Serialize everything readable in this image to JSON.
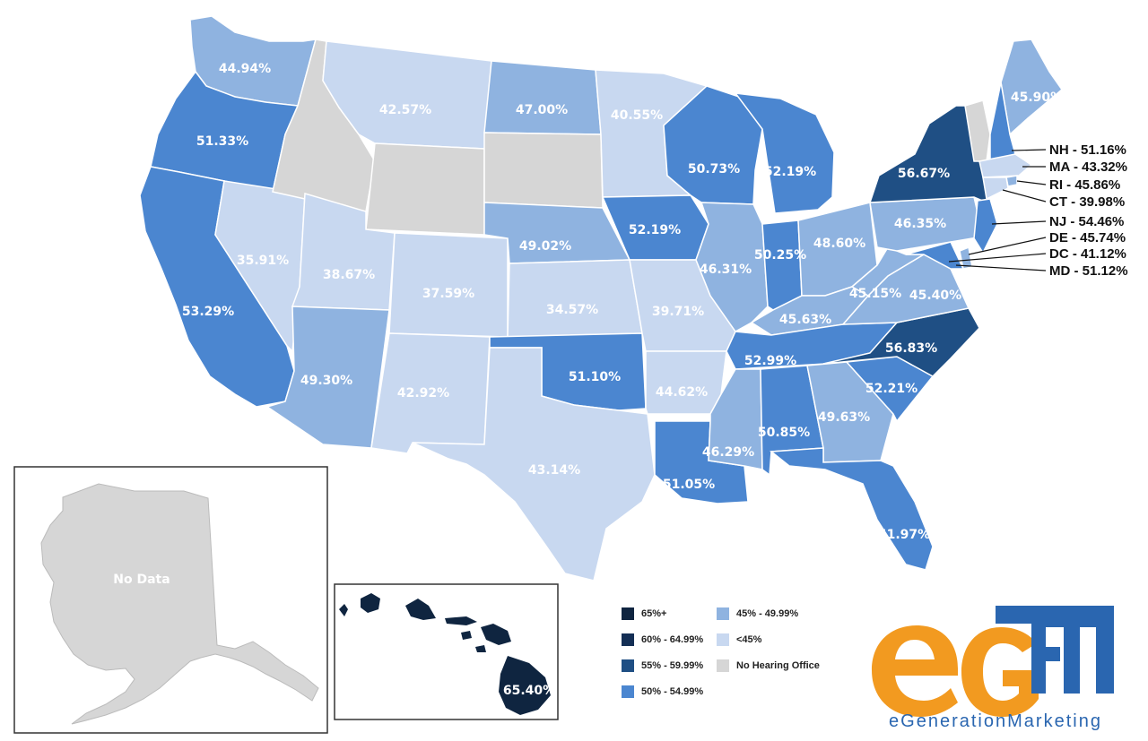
{
  "colors": {
    "c65": "#0f2540",
    "c60": "#142f55",
    "c55": "#1f4f84",
    "c50": "#4b86d0",
    "c45": "#8fb3e0",
    "c40": "#c8d8f0",
    "nohearing": "#d6d6d6",
    "stroke": "#ffffff",
    "logoOrange": "#f29a20",
    "logoBlue": "#2a66b0",
    "labelText": "#ffffff"
  },
  "map": {
    "states": [
      {
        "id": "WA",
        "value": "44.94%",
        "tier": "c45"
      },
      {
        "id": "OR",
        "value": "51.33%",
        "tier": "c50"
      },
      {
        "id": "CA",
        "value": "53.29%",
        "tier": "c50"
      },
      {
        "id": "NV",
        "value": "35.91%",
        "tier": "c40"
      },
      {
        "id": "ID",
        "value": "",
        "tier": "nohearing"
      },
      {
        "id": "MT",
        "value": "42.57%",
        "tier": "c40"
      },
      {
        "id": "WY",
        "value": "",
        "tier": "nohearing"
      },
      {
        "id": "UT",
        "value": "38.67%",
        "tier": "c40"
      },
      {
        "id": "AZ",
        "value": "49.30%",
        "tier": "c45"
      },
      {
        "id": "CO",
        "value": "37.59%",
        "tier": "c40"
      },
      {
        "id": "NM",
        "value": "42.92%",
        "tier": "c40"
      },
      {
        "id": "ND",
        "value": "47.00%",
        "tier": "c45"
      },
      {
        "id": "SD",
        "value": "",
        "tier": "nohearing"
      },
      {
        "id": "NE",
        "value": "49.02%",
        "tier": "c45"
      },
      {
        "id": "KS",
        "value": "34.57%",
        "tier": "c40"
      },
      {
        "id": "OK",
        "value": "51.10%",
        "tier": "c50"
      },
      {
        "id": "TX",
        "value": "43.14%",
        "tier": "c40"
      },
      {
        "id": "MN",
        "value": "40.55%",
        "tier": "c40"
      },
      {
        "id": "IA",
        "value": "52.19%",
        "tier": "c50"
      },
      {
        "id": "MO",
        "value": "39.71%",
        "tier": "c40"
      },
      {
        "id": "AR",
        "value": "44.62%",
        "tier": "c40"
      },
      {
        "id": "LA",
        "value": "51.05%",
        "tier": "c50"
      },
      {
        "id": "WI",
        "value": "50.73%",
        "tier": "c50"
      },
      {
        "id": "MI",
        "value": "52.19%",
        "tier": "c50"
      },
      {
        "id": "IL",
        "value": "46.31%",
        "tier": "c45"
      },
      {
        "id": "IN",
        "value": "50.25%",
        "tier": "c50"
      },
      {
        "id": "OH",
        "value": "48.60%",
        "tier": "c45"
      },
      {
        "id": "KY",
        "value": "45.63%",
        "tier": "c45"
      },
      {
        "id": "TN",
        "value": "52.99%",
        "tier": "c50"
      },
      {
        "id": "MS",
        "value": "46.29%",
        "tier": "c45"
      },
      {
        "id": "AL",
        "value": "50.85%",
        "tier": "c50"
      },
      {
        "id": "GA",
        "value": "49.63%",
        "tier": "c45"
      },
      {
        "id": "FL",
        "value": "51.97%",
        "tier": "c50"
      },
      {
        "id": "SC",
        "value": "52.21%",
        "tier": "c50"
      },
      {
        "id": "NC",
        "value": "56.83%",
        "tier": "c55"
      },
      {
        "id": "VA",
        "value": "45.40%",
        "tier": "c45"
      },
      {
        "id": "WV",
        "value": "45.15%",
        "tier": "c45"
      },
      {
        "id": "PA",
        "value": "46.35%",
        "tier": "c45"
      },
      {
        "id": "NY",
        "value": "56.67%",
        "tier": "c55"
      },
      {
        "id": "ME",
        "value": "45.90%",
        "tier": "c45"
      },
      {
        "id": "VT",
        "value": "",
        "tier": "nohearing"
      },
      {
        "id": "NH",
        "value": "51.16%",
        "tier": "c50"
      },
      {
        "id": "MA",
        "value": "43.32%",
        "tier": "c40"
      },
      {
        "id": "RI",
        "value": "45.86%",
        "tier": "c45"
      },
      {
        "id": "CT",
        "value": "39.98%",
        "tier": "c40"
      },
      {
        "id": "NJ",
        "value": "54.46%",
        "tier": "c50"
      },
      {
        "id": "DE",
        "value": "45.74%",
        "tier": "c45"
      },
      {
        "id": "DC",
        "value": "41.12%",
        "tier": "c40"
      },
      {
        "id": "MD",
        "value": "51.12%",
        "tier": "c50"
      }
    ],
    "callouts": [
      "NH - 51.16%",
      "MA - 43.32%",
      "RI - 45.86%",
      "CT - 39.98%",
      "NJ - 54.46%",
      "DE - 45.74%",
      "DC - 41.12%",
      "MD - 51.12%"
    ],
    "alaska": {
      "label": "No Data",
      "tier": "nohearing"
    },
    "hawaii": {
      "label": "65.40%",
      "tier": "c65"
    }
  },
  "legend": [
    {
      "label": "65%+",
      "tier": "c65"
    },
    {
      "label": "60% - 64.99%",
      "tier": "c60"
    },
    {
      "label": "55% - 59.99%",
      "tier": "c55"
    },
    {
      "label": "50% - 54.99%",
      "tier": "c50"
    },
    {
      "label": "45% - 49.99%",
      "tier": "c45"
    },
    {
      "label": "<45%",
      "tier": "c40"
    },
    {
      "label": "No Hearing Office",
      "tier": "nohearing"
    }
  ],
  "logo": {
    "letters": "eGEN",
    "tagline": "eGenerationMarketing"
  }
}
